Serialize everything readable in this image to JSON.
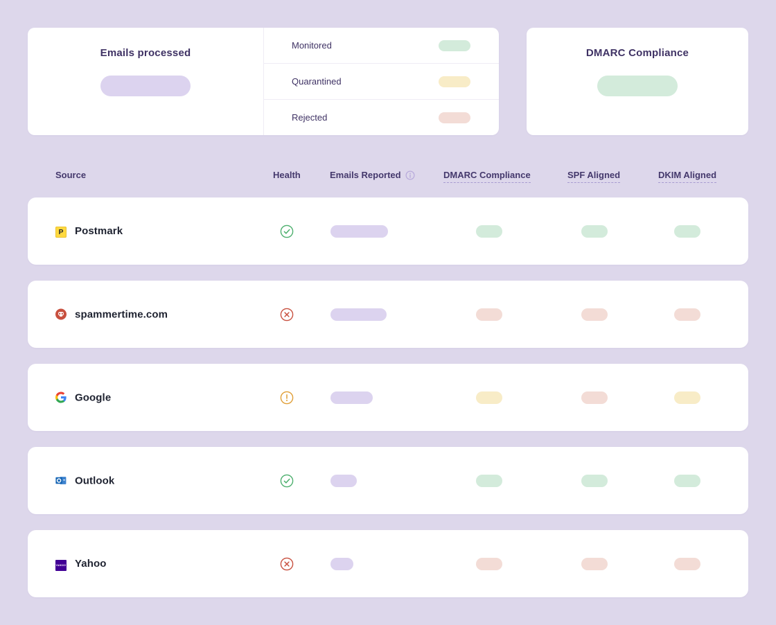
{
  "colors": {
    "page_bg": "#DDD7EB",
    "card_bg": "#FFFFFF",
    "title_text": "#3F3264",
    "source_text": "#1E2230",
    "neutral_pill": "#DCD3EF",
    "pass_pill": "#D3EBDB",
    "warn_pill": "#F8ECC7",
    "fail_pill": "#F3DCD6",
    "ok_icon": "#4CAF6D",
    "fail_icon": "#C8503F",
    "warn_icon": "#E09E35"
  },
  "summary": {
    "emails_processed": {
      "title": "Emails processed"
    },
    "stats": [
      {
        "label": "Monitored",
        "status": "pass"
      },
      {
        "label": "Quarantined",
        "status": "warn"
      },
      {
        "label": "Rejected",
        "status": "fail"
      }
    ],
    "dmarc_compliance": {
      "title": "DMARC Compliance",
      "status": "pass"
    }
  },
  "table": {
    "headers": [
      {
        "label": "Source"
      },
      {
        "label": "Health"
      },
      {
        "label": "Emails Reported",
        "has_info_icon": true
      },
      {
        "label": "DMARC Compliance",
        "underlined": true
      },
      {
        "label": "SPF Aligned",
        "underlined": true
      },
      {
        "label": "DKIM Aligned",
        "underlined": true
      }
    ],
    "rows": [
      {
        "source": "Postmark",
        "icon": "postmark",
        "health": "ok",
        "emails_pill_width": 83,
        "dmarc": "pass",
        "spf": "pass",
        "dkim": "pass"
      },
      {
        "source": "spammertime.com",
        "icon": "spammertime",
        "health": "fail",
        "emails_pill_width": 81,
        "dmarc": "fail",
        "spf": "fail",
        "dkim": "fail"
      },
      {
        "source": "Google",
        "icon": "google",
        "health": "warn",
        "emails_pill_width": 61,
        "dmarc": "warn",
        "spf": "fail",
        "dkim": "warn"
      },
      {
        "source": "Outlook",
        "icon": "outlook",
        "health": "ok",
        "emails_pill_width": 38,
        "dmarc": "pass",
        "spf": "pass",
        "dkim": "pass"
      },
      {
        "source": "Yahoo",
        "icon": "yahoo",
        "health": "fail",
        "emails_pill_width": 33,
        "dmarc": "fail",
        "spf": "fail",
        "dkim": "fail"
      }
    ]
  }
}
